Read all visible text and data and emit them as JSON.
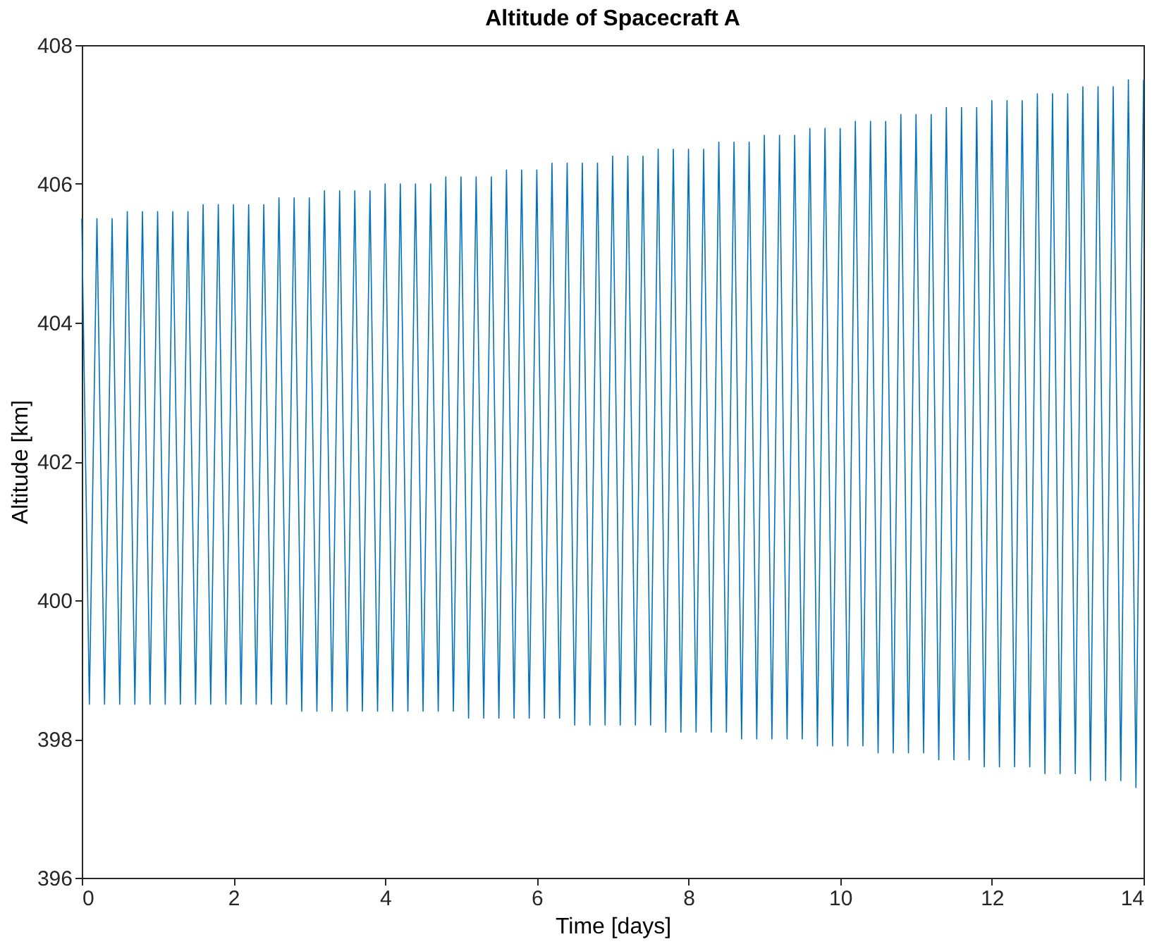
{
  "chart_data": {
    "type": "line",
    "title": "Altitude of Spacecraft A",
    "xlabel": "Time [days]",
    "ylabel": "Altitude [km]",
    "x": [
      0,
      0.1,
      0.2,
      0.3,
      0.4,
      0.5,
      0.6,
      0.7,
      0.8,
      0.9,
      1,
      1.1,
      1.2,
      1.3,
      1.4,
      1.5,
      1.6,
      1.7,
      1.8,
      1.9,
      2,
      2.1,
      2.2,
      2.3,
      2.4,
      2.5,
      2.6,
      2.7,
      2.8,
      2.9,
      3,
      3.1,
      3.2,
      3.3,
      3.4,
      3.5,
      3.6,
      3.7,
      3.8,
      3.9,
      4,
      4.1,
      4.2,
      4.3,
      4.4,
      4.5,
      4.6,
      4.7,
      4.8,
      4.9,
      5,
      5.1,
      5.2,
      5.3,
      5.4,
      5.5,
      5.6,
      5.7,
      5.8,
      5.9,
      6,
      6.1,
      6.2,
      6.3,
      6.4,
      6.5,
      6.6,
      6.7,
      6.8,
      6.9,
      7,
      7.1,
      7.2,
      7.3,
      7.4,
      7.5,
      7.6,
      7.7,
      7.8,
      7.9,
      8,
      8.1,
      8.2,
      8.3,
      8.4,
      8.5,
      8.6,
      8.7,
      8.8,
      8.9,
      9,
      9.1,
      9.2,
      9.3,
      9.4,
      9.5,
      9.6,
      9.7,
      9.8,
      9.9,
      10,
      10.1,
      10.2,
      10.3,
      10.4,
      10.5,
      10.6,
      10.7,
      10.8,
      10.9,
      11,
      11.1,
      11.2,
      11.3,
      11.4,
      11.5,
      11.6,
      11.7,
      11.8,
      11.9,
      12,
      12.1,
      12.2,
      12.3,
      12.4,
      12.5,
      12.6,
      12.7,
      12.8,
      12.9,
      13,
      13.1,
      13.2,
      13.3,
      13.4,
      13.5,
      13.6,
      13.7,
      13.8,
      13.9,
      14
    ],
    "series": [
      {
        "color": "#0072bd",
        "values": [
          405.5,
          398.5,
          405.5,
          398.5,
          405.5,
          398.5,
          405.6,
          398.5,
          405.6,
          398.5,
          405.6,
          398.5,
          405.6,
          398.5,
          405.6,
          398.5,
          405.7,
          398.5,
          405.7,
          398.5,
          405.7,
          398.5,
          405.7,
          398.5,
          405.7,
          398.5,
          405.8,
          398.5,
          405.8,
          398.4,
          405.8,
          398.4,
          405.9,
          398.4,
          405.9,
          398.4,
          405.9,
          398.4,
          405.9,
          398.4,
          406.0,
          398.4,
          406.0,
          398.4,
          406.0,
          398.4,
          406.0,
          398.4,
          406.1,
          398.4,
          406.1,
          398.3,
          406.1,
          398.3,
          406.1,
          398.3,
          406.2,
          398.3,
          406.2,
          398.3,
          406.2,
          398.3,
          406.3,
          398.3,
          406.3,
          398.2,
          406.3,
          398.2,
          406.3,
          398.2,
          406.4,
          398.2,
          406.4,
          398.2,
          406.4,
          398.2,
          406.5,
          398.1,
          406.5,
          398.1,
          406.5,
          398.1,
          406.5,
          398.1,
          406.6,
          398.1,
          406.6,
          398.0,
          406.6,
          398.0,
          406.7,
          398.0,
          406.7,
          398.0,
          406.7,
          398.0,
          406.8,
          397.9,
          406.8,
          397.9,
          406.8,
          397.9,
          406.9,
          397.9,
          406.9,
          397.8,
          406.9,
          397.8,
          407.0,
          397.8,
          407.0,
          397.8,
          407.0,
          397.7,
          407.1,
          397.7,
          407.1,
          397.7,
          407.1,
          397.6,
          407.2,
          397.6,
          407.2,
          397.6,
          407.2,
          397.6,
          407.3,
          397.5,
          407.3,
          397.5,
          407.3,
          397.5,
          407.4,
          397.4,
          407.4,
          397.4,
          407.4,
          397.4,
          407.5,
          397.3,
          407.5
        ]
      }
    ],
    "xlim": [
      0,
      14
    ],
    "xticks": [
      0,
      2,
      4,
      6,
      8,
      10,
      12,
      14
    ],
    "ylim": [
      396,
      408
    ],
    "yticks": [
      396,
      398,
      400,
      402,
      404,
      406,
      408
    ],
    "grid": false,
    "marker": "none",
    "line_style": "solid"
  }
}
